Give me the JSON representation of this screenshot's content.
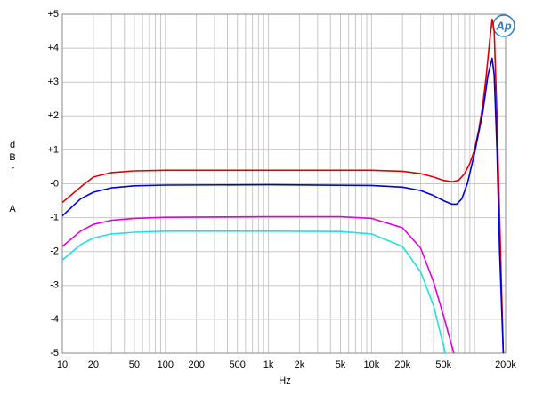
{
  "chart_data": {
    "type": "line",
    "logo": "Ap",
    "xlabel": "Hz",
    "ylabel": "dBr",
    "ylabel_unit": "A",
    "xlog": true,
    "grid": true,
    "xlim": [
      10,
      200000
    ],
    "ylim": [
      -5,
      5
    ],
    "yticks": [
      {
        "value": 5,
        "label": "+5"
      },
      {
        "value": 4,
        "label": "+4"
      },
      {
        "value": 3,
        "label": "+3"
      },
      {
        "value": 2,
        "label": "+2"
      },
      {
        "value": 1,
        "label": "+1"
      },
      {
        "value": 0,
        "label": "-0"
      },
      -1,
      -2,
      -3,
      -4,
      -5
    ],
    "xticks": [
      10,
      20,
      50,
      100,
      200,
      500,
      {
        "value": 1000,
        "label": "1k"
      },
      {
        "value": 2000,
        "label": "2k"
      },
      {
        "value": 5000,
        "label": "5k"
      },
      {
        "value": 10000,
        "label": "10k"
      },
      {
        "value": 20000,
        "label": "20k"
      },
      {
        "value": 50000,
        "label": "50k"
      },
      {
        "value": 200000,
        "label": "200k"
      }
    ],
    "xgrid": [
      30,
      40,
      60,
      70,
      80,
      90,
      300,
      400,
      600,
      700,
      800,
      900,
      3000,
      4000,
      6000,
      7000,
      8000,
      9000,
      30000,
      40000,
      60000,
      70000,
      80000,
      90000,
      100000
    ],
    "series": [
      {
        "color": "#e00000",
        "x": [
          10,
          15,
          20,
          30,
          50,
          100,
          1000,
          10000,
          20000,
          30000,
          40000,
          50000,
          60000,
          70000,
          80000,
          90000,
          100000,
          110000,
          120000,
          130000,
          140000,
          148000,
          155000,
          165000,
          175000,
          190000
        ],
        "values": [
          -0.55,
          -0.1,
          0.2,
          0.33,
          0.38,
          0.4,
          0.4,
          0.4,
          0.37,
          0.3,
          0.2,
          0.1,
          0.06,
          0.1,
          0.3,
          0.6,
          1.0,
          1.6,
          2.3,
          3.2,
          4.2,
          4.85,
          4.5,
          2,
          -1,
          -5
        ]
      },
      {
        "color": "#0000e0",
        "x": [
          10,
          15,
          20,
          30,
          50,
          100,
          1000,
          10000,
          20000,
          30000,
          40000,
          50000,
          60000,
          67000,
          75000,
          85000,
          100000,
          120000,
          135000,
          148000,
          155000,
          165000,
          175000,
          190000
        ],
        "values": [
          -0.95,
          -0.45,
          -0.25,
          -0.12,
          -0.06,
          -0.04,
          -0.03,
          -0.05,
          -0.1,
          -0.2,
          -0.35,
          -0.5,
          -0.6,
          -0.6,
          -0.45,
          0,
          0.9,
          2.1,
          3.2,
          3.7,
          3.2,
          1,
          -2,
          -5
        ]
      },
      {
        "color": "#e000e0",
        "x": [
          10,
          15,
          20,
          30,
          50,
          100,
          1000,
          5000,
          10000,
          20000,
          30000,
          40000,
          50000,
          63000
        ],
        "values": [
          -1.85,
          -1.4,
          -1.2,
          -1.08,
          -1.02,
          -0.99,
          -0.97,
          -0.97,
          -1.02,
          -1.3,
          -1.9,
          -2.9,
          -3.9,
          -5
        ]
      },
      {
        "color": "#20e0e0",
        "x": [
          10,
          15,
          20,
          30,
          50,
          100,
          1000,
          5000,
          10000,
          20000,
          30000,
          40000,
          52000
        ],
        "values": [
          -2.25,
          -1.8,
          -1.6,
          -1.48,
          -1.43,
          -1.4,
          -1.4,
          -1.41,
          -1.48,
          -1.85,
          -2.6,
          -3.6,
          -5
        ]
      }
    ]
  }
}
